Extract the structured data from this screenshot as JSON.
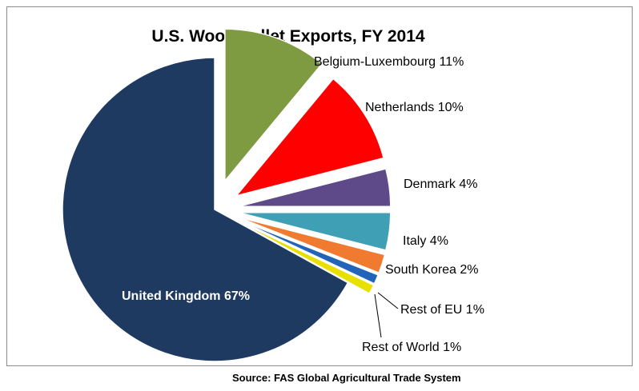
{
  "chart_data": {
    "type": "pie",
    "title": "U.S. Wood Pellet Exports, FY 2014",
    "source": "Source: FAS Global Agricultural Trade System",
    "slices": [
      {
        "label": "Belgium-Luxembourg 11%",
        "value": 11,
        "color": "#7f9b42"
      },
      {
        "label": "Netherlands 10%",
        "value": 10,
        "color": "#ff0000"
      },
      {
        "label": "Denmark 4%",
        "value": 4,
        "color": "#5e4a88"
      },
      {
        "label": "Italy 4%",
        "value": 4,
        "color": "#3f9fb4"
      },
      {
        "label": "South Korea 2%",
        "value": 2,
        "color": "#f07b30"
      },
      {
        "label": "Rest of EU 1%",
        "value": 1,
        "color": "#2265b8"
      },
      {
        "label": "Rest of World 1%",
        "value": 1,
        "color": "#e8e000"
      },
      {
        "label": "United Kingdom 67%",
        "value": 67,
        "color": "#1e3a61"
      }
    ]
  }
}
